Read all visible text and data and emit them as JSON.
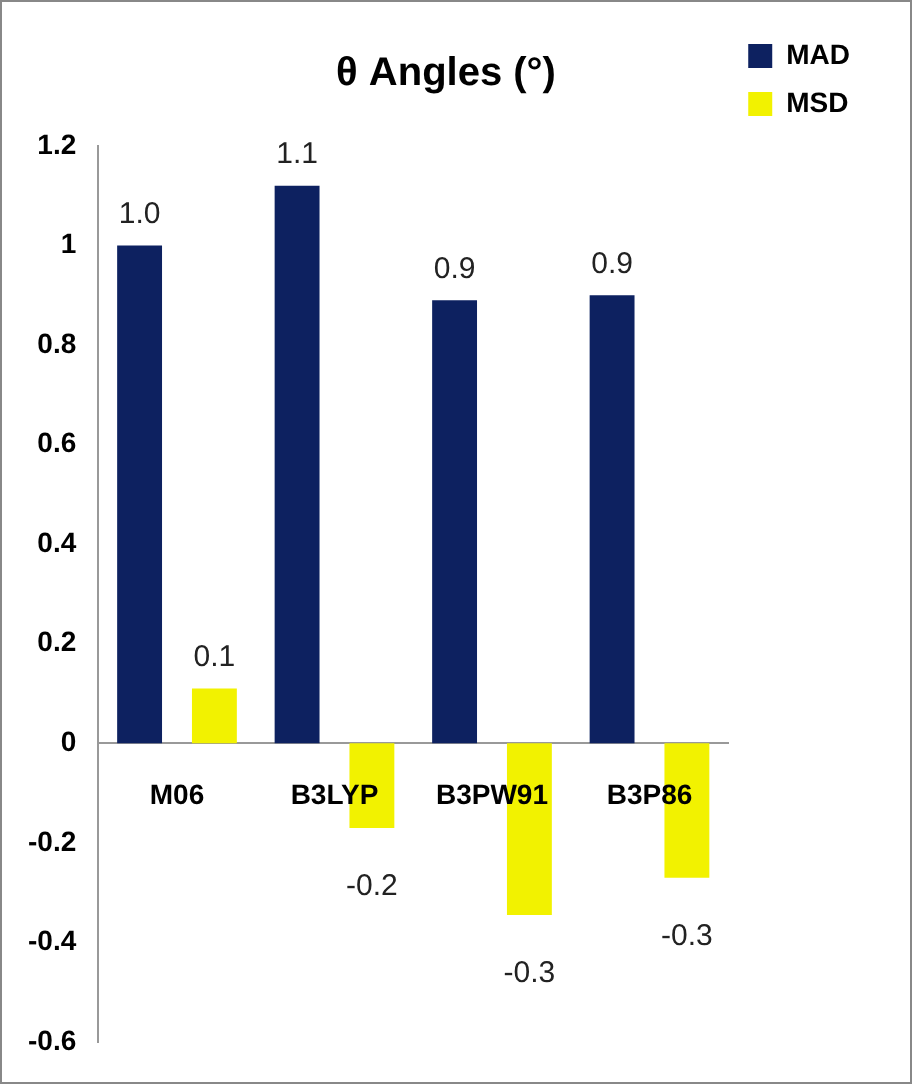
{
  "chart_data": {
    "type": "bar",
    "title": "θ Angles (°)",
    "categories": [
      "M06",
      "B3LYP",
      "B3PW91",
      "B3P86"
    ],
    "series": [
      {
        "name": "MAD",
        "color": "#0d2160",
        "values": [
          1.0,
          1.12,
          0.89,
          0.9
        ],
        "value_labels": [
          "1.0",
          "1.1",
          "0.9",
          "0.9"
        ]
      },
      {
        "name": "MSD",
        "color": "#f2f200",
        "values": [
          0.11,
          -0.17,
          -0.345,
          -0.27
        ],
        "value_labels": [
          "0.1",
          "-0.2",
          "-0.3",
          "-0.3"
        ]
      }
    ],
    "ylim": [
      -0.6,
      1.2
    ],
    "yticks": [
      -0.6,
      -0.4,
      -0.2,
      0,
      0.2,
      0.4,
      0.6,
      0.8,
      1,
      1.2
    ],
    "grid": false,
    "legend": "top right"
  }
}
